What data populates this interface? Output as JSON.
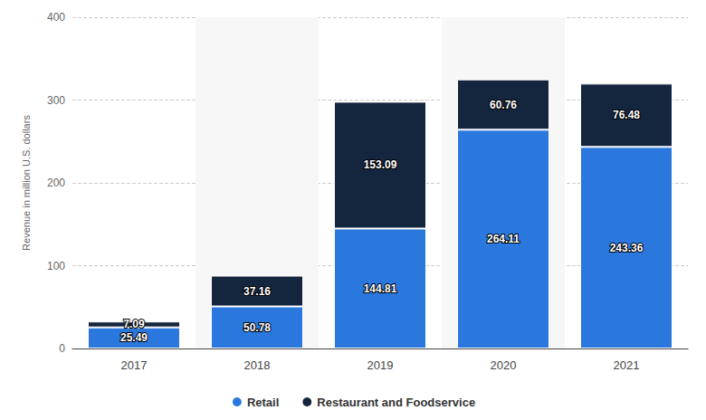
{
  "chart_data": {
    "type": "bar",
    "categories": [
      "2017",
      "2018",
      "2019",
      "2020",
      "2021"
    ],
    "series": [
      {
        "name": "Retail",
        "color": "#2a78de",
        "values": [
          25.49,
          50.78,
          144.81,
          264.11,
          243.36
        ]
      },
      {
        "name": "Restaurant and Foodservice",
        "color": "#14253e",
        "values": [
          7.09,
          37.16,
          153.09,
          60.76,
          76.48
        ]
      }
    ],
    "ylabel": "Revenue in million U.S. dollars",
    "ylim": [
      0,
      400
    ],
    "yticks": [
      0,
      100,
      200,
      300,
      400
    ],
    "grid": true,
    "stacked": true,
    "data_labels": true,
    "legend": "bottom"
  }
}
